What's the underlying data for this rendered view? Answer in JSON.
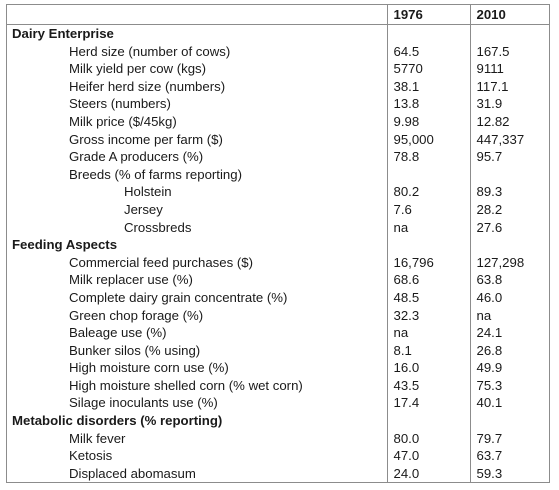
{
  "columns": {
    "year_a": "1976",
    "year_b": "2010"
  },
  "rows": [
    {
      "kind": "section",
      "label": "Dairy Enterprise",
      "v1976": "",
      "v2010": ""
    },
    {
      "kind": "l1",
      "label": "Herd size (number of cows)",
      "v1976": "64.5",
      "v2010": "167.5"
    },
    {
      "kind": "l1",
      "label": "Milk yield per cow (kgs)",
      "v1976": "5770",
      "v2010": "9111"
    },
    {
      "kind": "l1",
      "label": "Heifer herd size (numbers)",
      "v1976": "38.1",
      "v2010": "117.1"
    },
    {
      "kind": "l1",
      "label": "Steers (numbers)",
      "v1976": "13.8",
      "v2010": "31.9"
    },
    {
      "kind": "l1",
      "label": "Milk price ($/45kg)",
      "v1976": "9.98",
      "v2010": "12.82"
    },
    {
      "kind": "l1",
      "label": "Gross income per farm ($)",
      "v1976": "95,000",
      "v2010": "447,337"
    },
    {
      "kind": "l1",
      "label": "Grade A producers (%)",
      "v1976": "78.8",
      "v2010": "95.7"
    },
    {
      "kind": "l1",
      "label": "Breeds (% of farms reporting)",
      "v1976": "",
      "v2010": ""
    },
    {
      "kind": "l2",
      "label": "Holstein",
      "v1976": "80.2",
      "v2010": "89.3"
    },
    {
      "kind": "l2",
      "label": "Jersey",
      "v1976": "7.6",
      "v2010": "28.2"
    },
    {
      "kind": "l2",
      "label": "Crossbreds",
      "v1976": "na",
      "v2010": "27.6"
    },
    {
      "kind": "section",
      "label": "Feeding Aspects",
      "v1976": "",
      "v2010": ""
    },
    {
      "kind": "l1",
      "label": "Commercial feed purchases ($)",
      "v1976": "16,796",
      "v2010": "127,298"
    },
    {
      "kind": "l1",
      "label": "Milk replacer use (%)",
      "v1976": "68.6",
      "v2010": "63.8"
    },
    {
      "kind": "l1",
      "label": "Complete dairy grain concentrate (%)",
      "v1976": "48.5",
      "v2010": "46.0"
    },
    {
      "kind": "l1",
      "label": "Green chop forage (%)",
      "v1976": "32.3",
      "v2010": "na"
    },
    {
      "kind": "l1",
      "label": "Baleage use (%)",
      "v1976": "na",
      "v2010": "24.1"
    },
    {
      "kind": "l1",
      "label": "Bunker silos (% using)",
      "v1976": "8.1",
      "v2010": "26.8"
    },
    {
      "kind": "l1",
      "label": "High moisture corn use (%)",
      "v1976": "16.0",
      "v2010": "49.9"
    },
    {
      "kind": "l1",
      "label": "High moisture shelled corn (% wet corn)",
      "v1976": "43.5",
      "v2010": "75.3"
    },
    {
      "kind": "l1",
      "label": "Silage inoculants use (%)",
      "v1976": "17.4",
      "v2010": "40.1"
    },
    {
      "kind": "section",
      "label": "Metabolic disorders (% reporting)",
      "v1976": "",
      "v2010": ""
    },
    {
      "kind": "l1",
      "label": "Milk fever",
      "v1976": "80.0",
      "v2010": "79.7"
    },
    {
      "kind": "l1",
      "label": "Ketosis",
      "v1976": "47.0",
      "v2010": "63.7"
    },
    {
      "kind": "l1",
      "label": "Displaced abomasum",
      "v1976": "24.0",
      "v2010": "59.3"
    }
  ]
}
